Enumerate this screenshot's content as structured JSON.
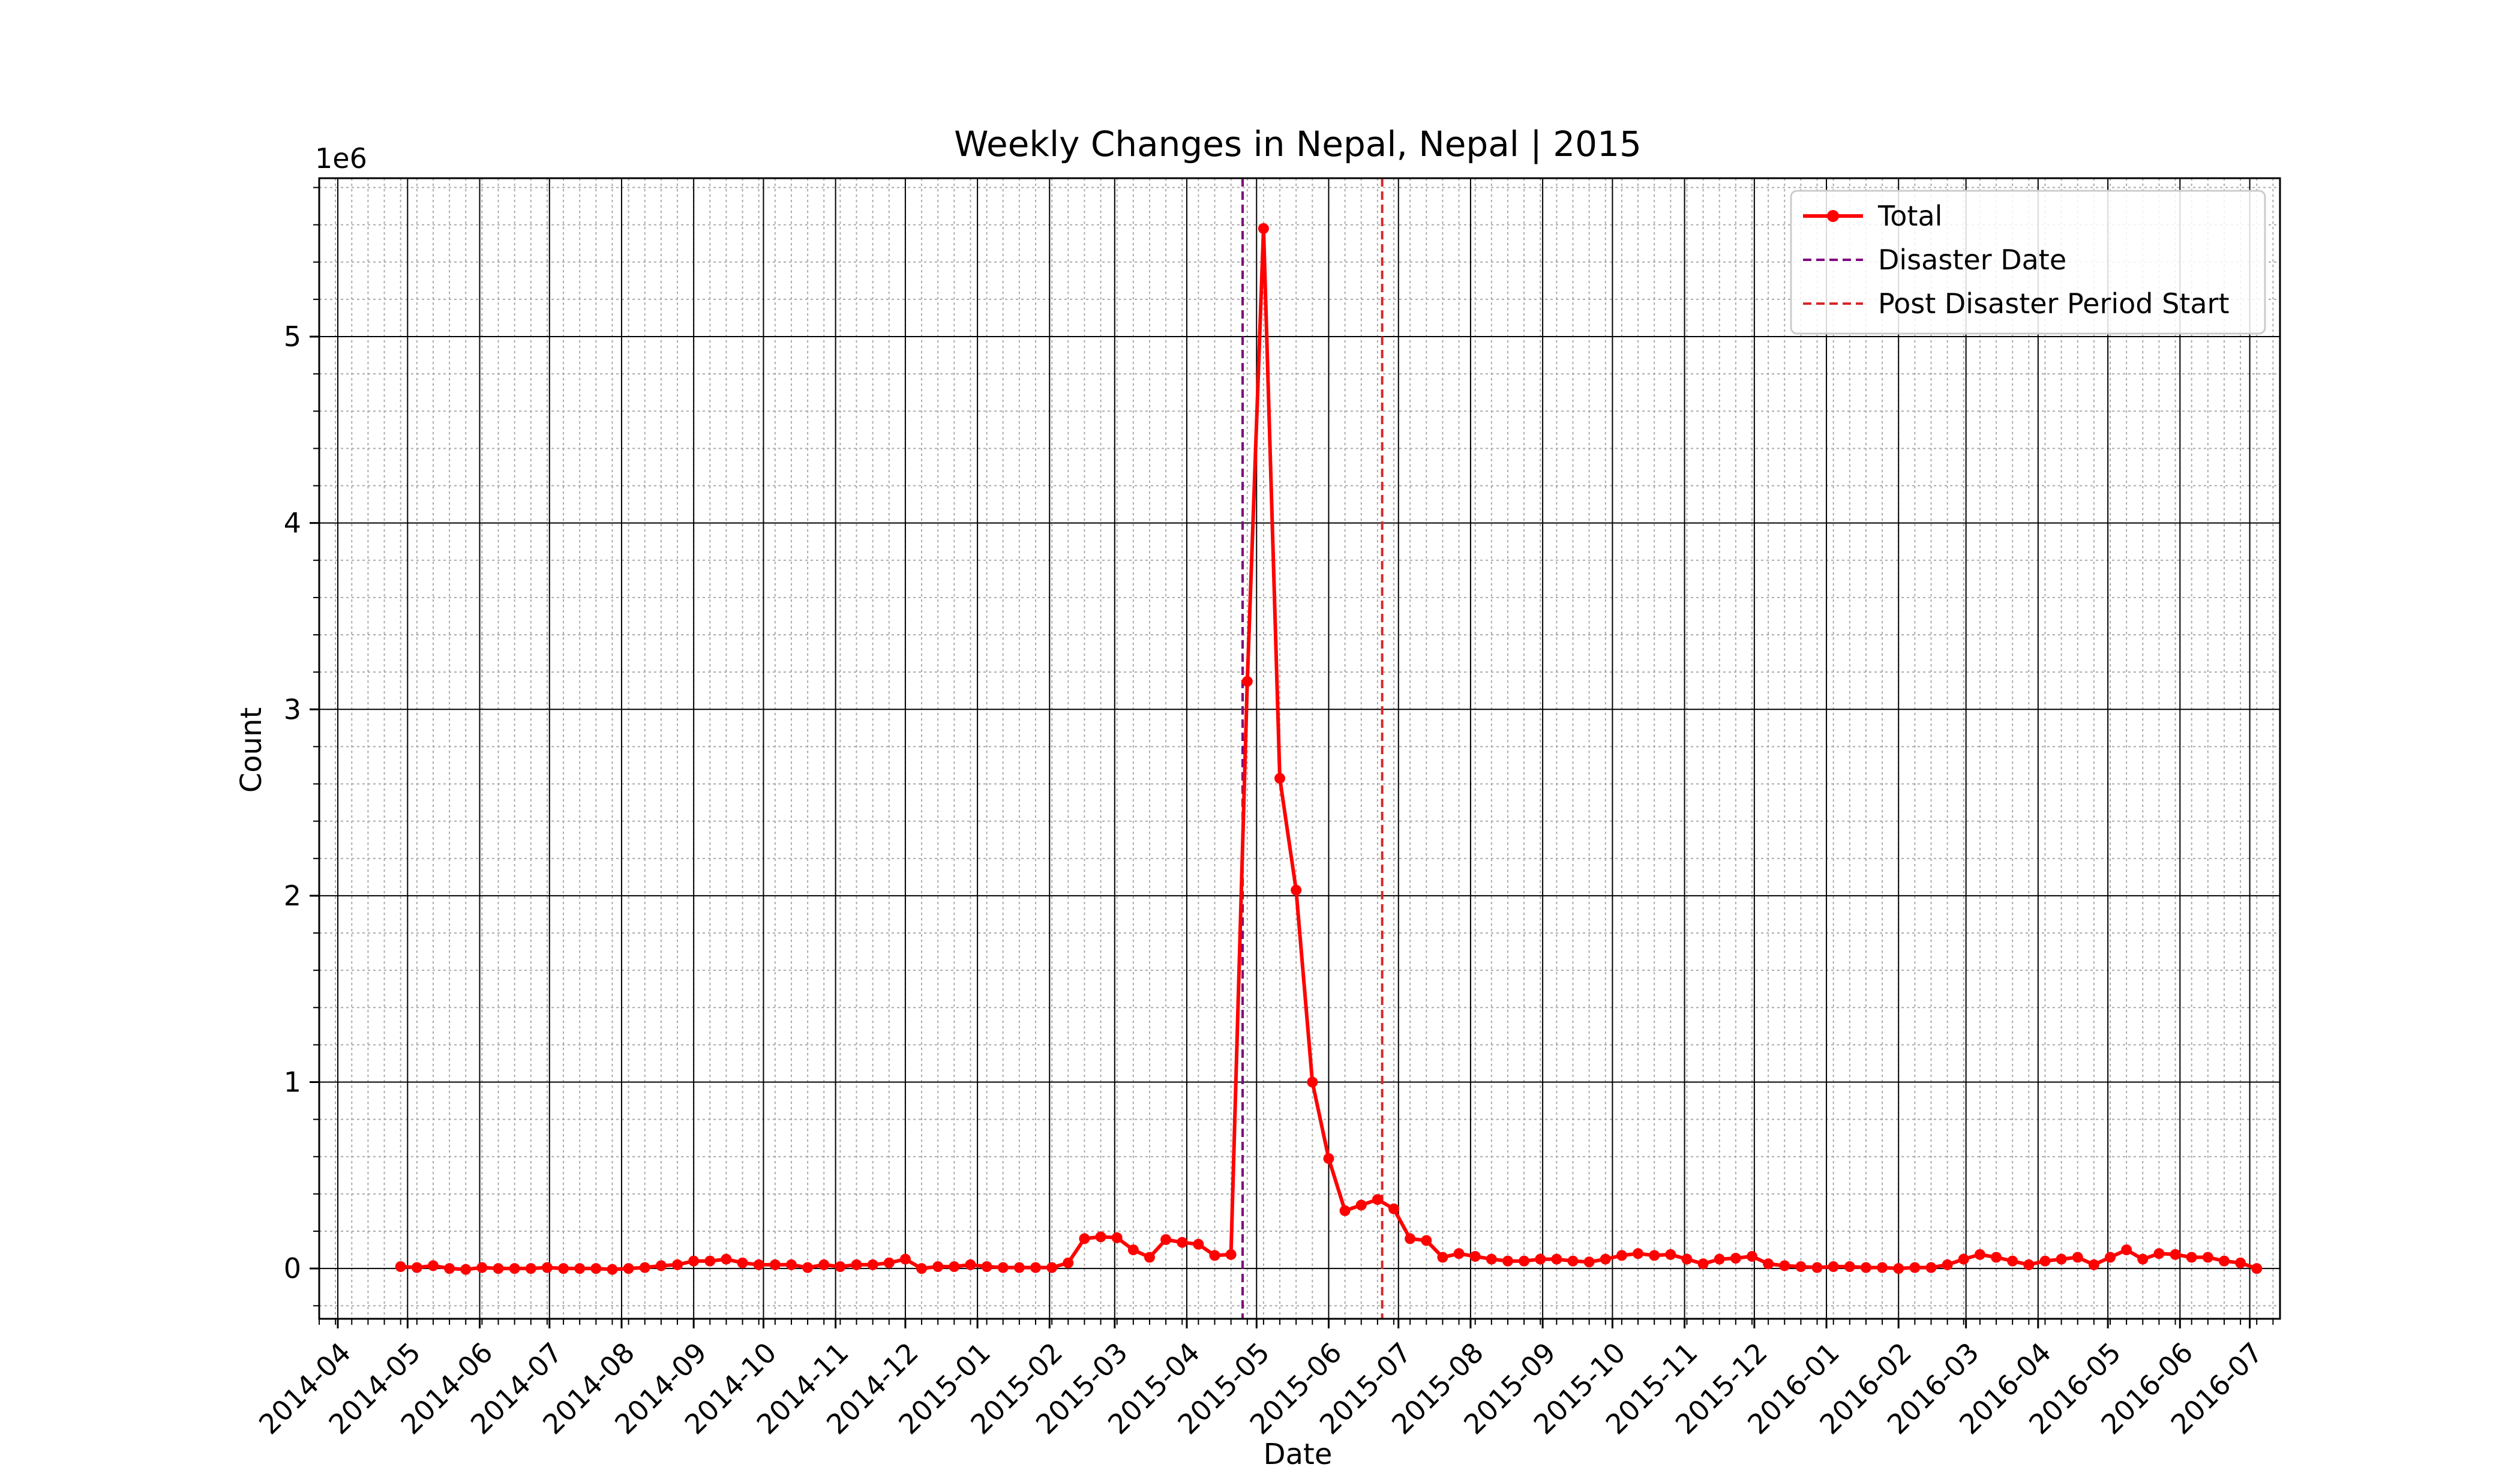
{
  "chart_data": {
    "type": "line",
    "title": "Weekly Changes in Nepal, Nepal | 2015",
    "xlabel": "Date",
    "ylabel": "Count",
    "y_offset_label": "1e6",
    "ylim": [
      -270000,
      5850000
    ],
    "xlim": [
      "2014-03-24",
      "2016-07-14"
    ],
    "y_ticks": [
      0,
      1,
      2,
      3,
      4,
      5
    ],
    "x_tick_labels": [
      "2014-04",
      "2014-05",
      "2014-06",
      "2014-07",
      "2014-08",
      "2014-09",
      "2014-10",
      "2014-11",
      "2014-12",
      "2015-01",
      "2015-02",
      "2015-03",
      "2015-04",
      "2015-05",
      "2015-06",
      "2015-07",
      "2015-08",
      "2015-09",
      "2015-10",
      "2015-11",
      "2015-12",
      "2016-01",
      "2016-02",
      "2016-03",
      "2016-04",
      "2016-05",
      "2016-06",
      "2016-07"
    ],
    "grid": true,
    "legend_position": "top-right",
    "series": [
      {
        "name": "Total",
        "color": "#ff0000",
        "start_date": "2014-04-28",
        "week_step": 7,
        "values": [
          10000,
          5000,
          15000,
          0,
          -5000,
          5000,
          0,
          0,
          0,
          5000,
          0,
          0,
          0,
          -5000,
          0,
          5000,
          15000,
          20000,
          40000,
          40000,
          50000,
          30000,
          20000,
          20000,
          20000,
          5000,
          20000,
          10000,
          20000,
          20000,
          30000,
          50000,
          0,
          10000,
          10000,
          20000,
          10000,
          5000,
          5000,
          5000,
          5000,
          30000,
          160000,
          170000,
          165000,
          100000,
          60000,
          155000,
          140000,
          130000,
          70000,
          75000,
          3150000,
          5580000,
          2630000,
          2030000,
          1000000,
          590000,
          310000,
          340000,
          370000,
          320000,
          160000,
          150000,
          60000,
          80000,
          65000,
          50000,
          40000,
          40000,
          50000,
          50000,
          40000,
          35000,
          50000,
          70000,
          80000,
          70000,
          75000,
          50000,
          25000,
          50000,
          55000,
          65000,
          25000,
          15000,
          10000,
          5000,
          10000,
          10000,
          5000,
          5000,
          0,
          5000,
          5000,
          20000,
          50000,
          75000,
          60000,
          40000,
          20000,
          40000,
          50000,
          60000,
          20000,
          60000,
          100000,
          50000,
          80000,
          75000,
          60000,
          60000,
          40000,
          30000,
          0
        ]
      }
    ],
    "vlines": [
      {
        "name": "Disaster Date",
        "date": "2015-04-25",
        "color": "#800080"
      },
      {
        "name": "Post Disaster Period Start",
        "date": "2015-06-24",
        "color": "#d62728"
      }
    ]
  }
}
